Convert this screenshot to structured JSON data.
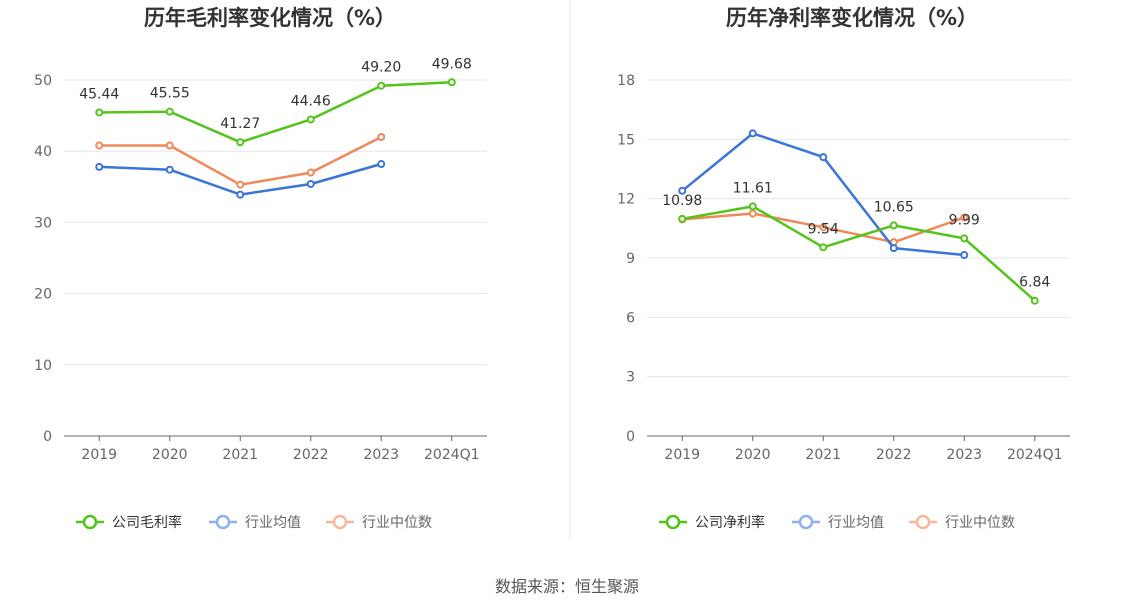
{
  "source": "数据来源：恒生聚源",
  "chart_data": [
    {
      "type": "line",
      "title": "历年毛利率变化情况（%）",
      "categories": [
        "2019",
        "2020",
        "2021",
        "2022",
        "2023",
        "2024Q1"
      ],
      "ylim": [
        0,
        50
      ],
      "yticks": [
        0,
        10,
        20,
        30,
        40,
        50
      ],
      "grid": true,
      "legend_position": "bottom",
      "series": [
        {
          "name": "公司毛利率",
          "color": "#52c41a",
          "values": [
            45.44,
            45.55,
            41.27,
            44.46,
            49.2,
            49.68
          ],
          "labels": [
            "45.44",
            "45.55",
            "41.27",
            "44.46",
            "49.20",
            "49.68"
          ]
        },
        {
          "name": "行业均值",
          "color": "#3a75d8",
          "values": [
            37.8,
            37.4,
            33.9,
            35.4,
            38.2,
            null
          ]
        },
        {
          "name": "行业中位数",
          "color": "#f0885a",
          "values": [
            40.8,
            40.8,
            35.3,
            37.0,
            42.0,
            null
          ]
        }
      ]
    },
    {
      "type": "line",
      "title": "历年净利率变化情况（%）",
      "categories": [
        "2019",
        "2020",
        "2021",
        "2022",
        "2023",
        "2024Q1"
      ],
      "ylim": [
        0,
        18
      ],
      "yticks": [
        0,
        3,
        6,
        9,
        12,
        15,
        18
      ],
      "grid": true,
      "legend_position": "bottom",
      "series": [
        {
          "name": "公司净利率",
          "color": "#52c41a",
          "values": [
            10.98,
            11.61,
            9.54,
            10.65,
            9.99,
            6.84
          ],
          "labels": [
            "10.98",
            "11.61",
            "9.54",
            "10.65",
            "9.99",
            "6.84"
          ]
        },
        {
          "name": "行业均值",
          "color": "#3a75d8",
          "values": [
            12.4,
            15.3,
            14.1,
            9.5,
            9.15,
            null
          ]
        },
        {
          "name": "行业中位数",
          "color": "#f0885a",
          "values": [
            10.95,
            11.25,
            10.55,
            9.8,
            11.05,
            null
          ]
        }
      ]
    }
  ]
}
